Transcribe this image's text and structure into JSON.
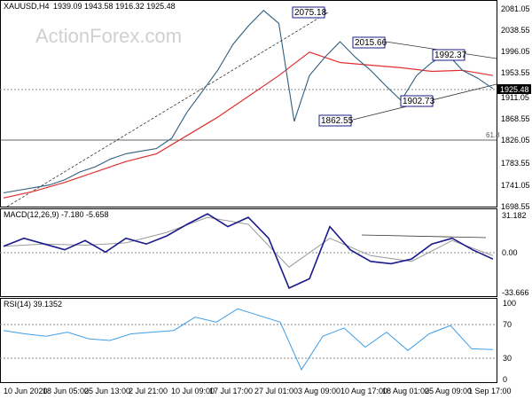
{
  "header": {
    "symbol": "XAUUSD,H4",
    "ohlc": "1939.09 1943.58 1916.32 1925.48"
  },
  "watermark": "ActionForex.com",
  "chart_data": [
    {
      "type": "line",
      "name": "price",
      "series": [
        {
          "name": "",
          "color": "#2f5f7f",
          "x": [
            "10 Jun 2020",
            "14 Jun",
            "18 Jun 05:00",
            "22 Jun",
            "25 Jun 13:00",
            "28 Jun",
            "2 Jul 21:00",
            "6 Jul",
            "10 Jul 09:00",
            "14 Jul",
            "17 Jul 17:00",
            "21 Jul",
            "24 Jul",
            "27 Jul 01:00",
            "30 Jul",
            "3 Aug 09:00",
            "5 Aug",
            "6 Aug",
            "7 Aug",
            "10 Aug 17:00",
            "11 Aug",
            "13 Aug",
            "15 Aug",
            "18 Aug 01:00",
            "20 Aug",
            "22 Aug",
            "25 Aug 09:00",
            "27 Aug",
            "29 Aug",
            "31 Aug",
            "1 Sep 17:00",
            "3 Sep",
            "4 Sep"
          ],
          "values": [
            1725,
            1730,
            1735,
            1740,
            1750,
            1765,
            1775,
            1790,
            1800,
            1805,
            1810,
            1830,
            1880,
            1920,
            1960,
            2010,
            2045,
            2075,
            2050,
            1862,
            1950,
            1985,
            2015,
            1985,
            1960,
            1930,
            1902,
            1950,
            1975,
            1992,
            1960,
            1945,
            1925
          ]
        },
        {
          "name": "",
          "color": "#e03030",
          "x": [
            "10 Jun 2020",
            "18 Jun 05:00",
            "25 Jun 13:00",
            "2 Jul 21:00",
            "10 Jul 09:00",
            "17 Jul 17:00",
            "24 Jul",
            "27 Jul 01:00",
            "30 Jul",
            "3 Aug 09:00",
            "7 Aug",
            "10 Aug 17:00",
            "15 Aug",
            "18 Aug 01:00",
            "25 Aug 09:00",
            "1 Sep 17:00",
            "4 Sep"
          ],
          "values": [
            1715,
            1728,
            1745,
            1765,
            1785,
            1800,
            1835,
            1870,
            1910,
            1950,
            1995,
            1975,
            1970,
            1965,
            1958,
            1960,
            1950
          ]
        }
      ],
      "annotations": [
        "2075.18",
        "2015.66",
        "1992.37",
        "1902.73",
        "1862.55",
        "61.8"
      ],
      "y_ticks": [
        "2081.05",
        "2038.55",
        "1996.05",
        "1953.55",
        "1911.05",
        "1868.55",
        "1826.05",
        "1783.55",
        "1741.05",
        "1698.55"
      ],
      "current_price": "1925.48",
      "ylim": [
        1698.55,
        2095
      ]
    },
    {
      "type": "line",
      "name": "macd",
      "title": "MACD(12,26,9) -7.180 -5.658",
      "y_ticks": [
        "31.182",
        "0.00",
        "-33.666"
      ],
      "series": [
        {
          "name": "",
          "color": "#1a1a8c",
          "x": [
            "10 Jun",
            "15 Jun",
            "20 Jun",
            "25 Jun",
            "30 Jun",
            "5 Jul",
            "10 Jul",
            "15 Jul",
            "20 Jul",
            "25 Jul",
            "30 Jul",
            "3 Aug",
            "6 Aug",
            "8 Aug",
            "10 Aug",
            "12 Aug",
            "15 Aug",
            "18 Aug",
            "20 Aug",
            "23 Aug",
            "25 Aug",
            "28 Aug",
            "31 Aug",
            "2 Sep",
            "4 Sep"
          ],
          "values": [
            3,
            10,
            5,
            0,
            8,
            -2,
            10,
            5,
            12,
            22,
            31,
            20,
            28,
            10,
            -33,
            -25,
            20,
            0,
            -10,
            -12,
            -8,
            5,
            10,
            0,
            -8
          ]
        },
        {
          "name": "",
          "color": "#9a9a9a",
          "x": [
            "10 Jun",
            "20 Jun",
            "30 Jun",
            "10 Jul",
            "20 Jul",
            "30 Jul",
            "6 Aug",
            "10 Aug",
            "15 Aug",
            "20 Aug",
            "25 Aug",
            "31 Aug",
            "4 Sep"
          ],
          "values": [
            3,
            5,
            4,
            6,
            15,
            28,
            22,
            -15,
            10,
            -5,
            -10,
            8,
            -5
          ]
        }
      ]
    },
    {
      "type": "line",
      "name": "rsi",
      "title": "RSI(14) 39.1352",
      "y_ticks": [
        "100",
        "70",
        "30",
        "0"
      ],
      "series": [
        {
          "name": "",
          "color": "#3d9ee8",
          "x": [
            "10 Jun",
            "15 Jun",
            "20 Jun",
            "25 Jun",
            "30 Jun",
            "5 Jul",
            "10 Jul",
            "15 Jul",
            "20 Jul",
            "25 Jul",
            "28 Jul",
            "1 Aug",
            "4 Aug",
            "7 Aug",
            "10 Aug",
            "13 Aug",
            "16 Aug",
            "19 Aug",
            "22 Aug",
            "25 Aug",
            "28 Aug",
            "31 Aug",
            "2 Sep",
            "4 Sep"
          ],
          "values": [
            62,
            58,
            55,
            60,
            52,
            50,
            58,
            60,
            62,
            78,
            72,
            88,
            80,
            72,
            15,
            55,
            65,
            42,
            60,
            38,
            58,
            68,
            40,
            39
          ]
        }
      ]
    }
  ],
  "time_axis": [
    "10 Jun 2020",
    "18 Jun 05:00",
    "25 Jun 13:00",
    "2 Jul 21:00",
    "10 Jul 09:00",
    "17 Jul 17:00",
    "27 Jul 01:00",
    "3 Aug 09:00",
    "10 Aug 17:00",
    "18 Aug 01:00",
    "25 Aug 09:00",
    "1 Sep 17:00"
  ]
}
